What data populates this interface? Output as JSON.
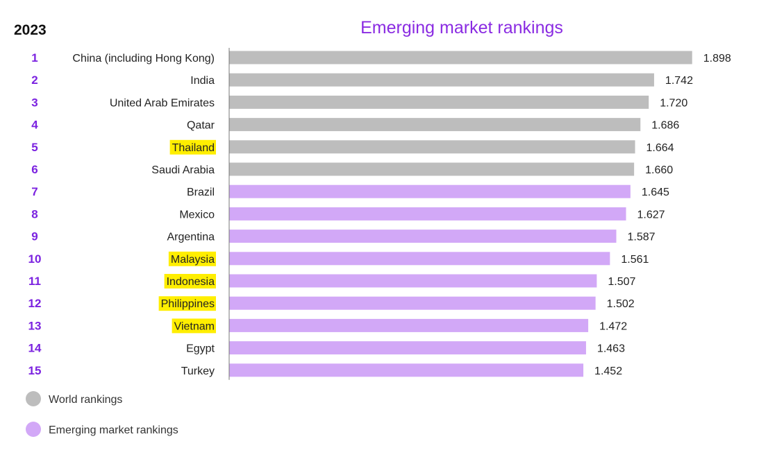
{
  "header": {
    "year": "2023"
  },
  "colors": {
    "world": "#bdbdbd",
    "emerging": "#d2a8f7",
    "rank_text": "#7b22e0",
    "highlight": "#ffee00",
    "axis": "#777777"
  },
  "chart_data": {
    "type": "bar",
    "orientation": "horizontal",
    "title": "Emerging market rankings",
    "ranks": [
      "1",
      "2",
      "3",
      "4",
      "5",
      "6",
      "7",
      "8",
      "9",
      "10",
      "11",
      "12",
      "13",
      "14",
      "15"
    ],
    "categories": [
      "China (including Hong Kong)",
      "India",
      "United Arab Emirates",
      "Qatar",
      "Thailand",
      "Saudi Arabia",
      "Brazil",
      "Mexico",
      "Argentina",
      "Malaysia",
      "Indonesia",
      "Philippines",
      "Vietnam",
      "Egypt",
      "Turkey"
    ],
    "values": [
      1.898,
      1.742,
      1.72,
      1.686,
      1.664,
      1.66,
      1.645,
      1.627,
      1.587,
      1.561,
      1.507,
      1.502,
      1.472,
      1.463,
      1.452
    ],
    "value_labels": [
      "1.898",
      "1.742",
      "1.720",
      "1.686",
      "1.664",
      "1.660",
      "1.645",
      "1.627",
      "1.587",
      "1.561",
      "1.507",
      "1.502",
      "1.472",
      "1.463",
      "1.452"
    ],
    "group": [
      "world",
      "world",
      "world",
      "world",
      "world",
      "world",
      "emerging",
      "emerging",
      "emerging",
      "emerging",
      "emerging",
      "emerging",
      "emerging",
      "emerging",
      "emerging"
    ],
    "highlighted": [
      false,
      false,
      false,
      false,
      true,
      false,
      false,
      false,
      false,
      true,
      true,
      true,
      true,
      false,
      false
    ],
    "xlim": [
      0,
      1.95
    ],
    "xlabel": "",
    "ylabel": "",
    "grid": false,
    "legend": {
      "position": "bottom-left",
      "entries": [
        {
          "key": "world",
          "label": "World rankings"
        },
        {
          "key": "emerging",
          "label": "Emerging market rankings"
        }
      ]
    }
  }
}
